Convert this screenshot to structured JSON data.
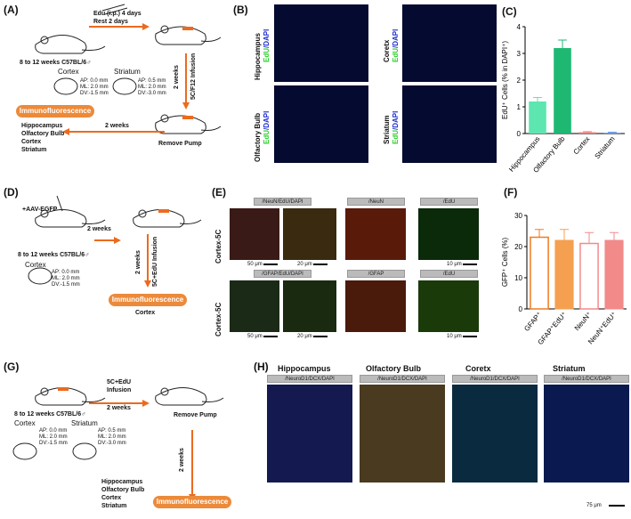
{
  "panels": {
    "A": "(A)",
    "B": "(B)",
    "C": "(C)",
    "D": "(D)",
    "E": "(E)",
    "F": "(F)",
    "G": "(G)",
    "H": "(H)"
  },
  "A": {
    "edu_step": "Edu (i.p.) 4 days",
    "rest_step": "Rest 2 days",
    "mice": "8 to 12 weeks C57BL/6♂",
    "cortex_label": "Cortex",
    "cortex_ap": "AP: 0.0 mm",
    "cortex_ml": "ML: 2.0 mm",
    "cortex_dv": "DV:-1.5 mm",
    "striatum_label": "Striatum",
    "striatum_ap": "AP: 0.5 mm",
    "striatum_ml": "ML: 2.0 mm",
    "striatum_dv": "DV:-3.0 mm",
    "infusion": "5C/F12 Infusion",
    "weeks_v": "2 weeks",
    "weeks_h": "2 weeks",
    "remove": "Remove Pump",
    "immuno": "Immunofluorescence",
    "regions": [
      "Hippocampus",
      "Olfactory Bulb",
      "Cortex",
      "Striatum"
    ]
  },
  "B": {
    "labels": [
      {
        "region": "Hippocampus",
        "marker": "EdU",
        "dapi": "/DAPI"
      },
      {
        "region": "Coretx",
        "marker": "EdU",
        "dapi": "/DAPI"
      },
      {
        "region": "Olfactory Bulb",
        "marker": "EdU",
        "dapi": "/DAPI"
      },
      {
        "region": "Striatum",
        "marker": "EdU",
        "dapi": "/DAPI"
      }
    ]
  },
  "D": {
    "virus": "+AAV-EGFP",
    "mice": "8 to 12 weeks C57BL/6♂",
    "weeks_h": "2 weeks",
    "infusion": "5C+EdU Infusion",
    "weeks_v": "2 weeks",
    "cortex_label": "Cortex",
    "ap": "AP: 0.0 mm",
    "ml": "ML: 2.0 mm",
    "dv": "DV:-1.5 mm",
    "immuno": "Immunofluorescence",
    "region": "Cortex"
  },
  "E": {
    "row1_label": "Cortex-5C",
    "row2_label": "Cortex-5C",
    "hdr1": "/NeuN/EdU/DAPI",
    "hdr2": "/NeuN",
    "hdr3": "/EdU",
    "hdr4": "/GFAP/EdU/DAPI",
    "hdr5": "/GFAP",
    "hdr6": "/EdU",
    "scale50": "50 μm",
    "scale20": "20 μm",
    "scale10": "10 μm"
  },
  "G": {
    "infusion": "5C+EdU",
    "infusion2": "Infusion",
    "weeks_h": "2 weeks",
    "remove": "Remove Pump",
    "weeks_v": "2 weeks",
    "mice": "8 to 12 weeks C57BL/6♂",
    "cortex_label": "Cortex",
    "cortex_ap": "AP: 0.0 mm",
    "cortex_ml": "ML: 2.0 mm",
    "cortex_dv": "DV:-1.5 mm",
    "striatum_label": "Striatum",
    "striatum_ap": "AP: 0.5 mm",
    "striatum_ml": "ML: 2.0 mm",
    "striatum_dv": "DV:-3.0 mm",
    "immuno": "Immunofluorescence",
    "regions": [
      "Hippocampus",
      "Olfactory Bulb",
      "Cortex",
      "Striatum"
    ]
  },
  "H": {
    "titles": [
      "Hippocampus",
      "Olfactory Bulb",
      "Coretx",
      "Striatum"
    ],
    "hdr": "/NeuroD1/DCX/DAPI",
    "scale": "75 μm"
  },
  "colors": {
    "orange": "#ec6a1e",
    "c_light": "#5ee6b0",
    "c_dark": "#1fb873",
    "f_line": "#f07a20",
    "f_bar": "#f4a050",
    "f_pink": "#f28a8a"
  },
  "chart_data": [
    {
      "type": "bar",
      "categories": [
        "Hippocampus",
        "Olfactory Bulb",
        "Cortex",
        "Striatum"
      ],
      "values": [
        1.2,
        3.2,
        0.05,
        0.03
      ],
      "errors": [
        0.15,
        0.3,
        0.02,
        0.02
      ],
      "ylabel": "EdU⁺ Cells (% in DAPI⁺)",
      "ylim": [
        0,
        4
      ],
      "yticks": [
        0,
        1,
        2,
        3,
        4
      ]
    },
    {
      "type": "bar",
      "categories": [
        "GFAP⁺",
        "GFAP⁺EdU⁺",
        "NeuN⁺",
        "NeuN⁺EdU⁺"
      ],
      "values": [
        23,
        22,
        21,
        22
      ],
      "errors": [
        2.5,
        3.5,
        3.5,
        2.5
      ],
      "ylabel": "GFP⁺ Cells (%)",
      "ylim": [
        0,
        30
      ],
      "yticks": [
        0,
        10,
        20,
        30
      ]
    }
  ]
}
